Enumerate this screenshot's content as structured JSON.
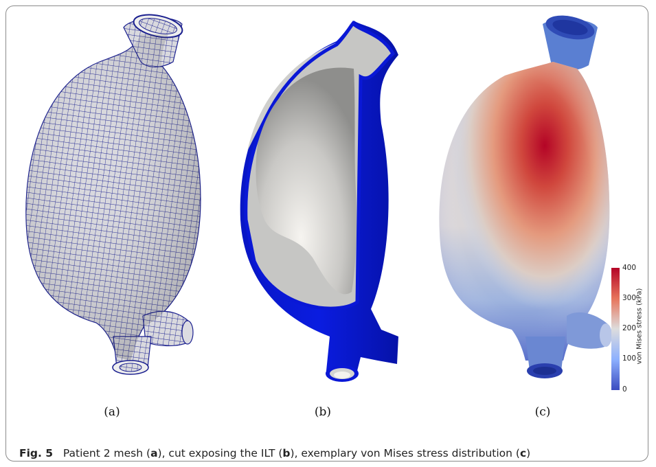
{
  "panels": [
    {
      "label": "(a)",
      "description": "mesh"
    },
    {
      "label": "(b)",
      "description": "cut exposing the ILT"
    },
    {
      "label": "(c)",
      "description": "von Mises stress distribution"
    }
  ],
  "caption": {
    "fig_label": "Fig. 5",
    "part1": "Patient 2 mesh (",
    "b1": "a",
    "part2": "), cut exposing the ILT (",
    "b2": "b",
    "part3": "), exemplary von Mises stress distribution (",
    "b3": "c",
    "part4": ")"
  },
  "colorbar": {
    "title": "von Mises stress (kPa)",
    "ticks": [
      "400",
      "300",
      "200",
      "100",
      "0"
    ],
    "colors": {
      "low": "#3b4cc0",
      "mid": "#dddddd",
      "high": "#b40426"
    }
  },
  "colors": {
    "mesh_line": "#1a1f8f",
    "mesh_surface": "#d8d8dc",
    "wall_blue": "#0a18d6",
    "ilt_gray": "#c8c8c6"
  }
}
